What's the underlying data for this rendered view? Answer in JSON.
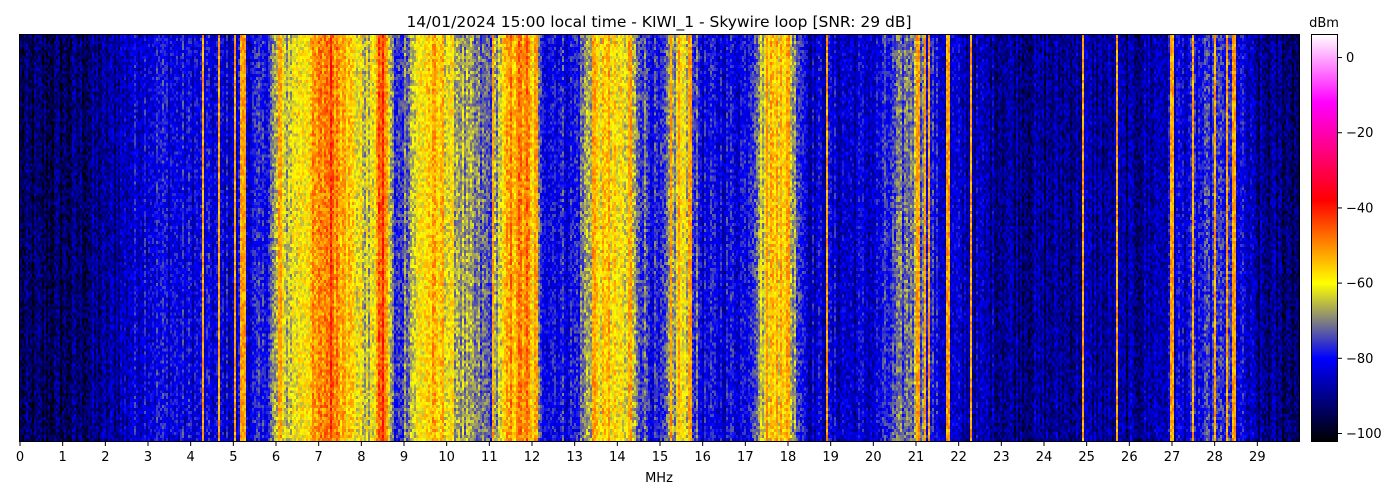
{
  "chart_data": {
    "type": "heatmap",
    "title": "14/01/2024 15:00 local time - KIWI_1 - Skywire loop [SNR: 29 dB]",
    "xlabel": "MHz",
    "ylabel": "",
    "xlim": [
      0,
      30
    ],
    "x_ticks": [
      "0",
      "1",
      "2",
      "3",
      "4",
      "5",
      "6",
      "7",
      "8",
      "9",
      "10",
      "11",
      "12",
      "13",
      "14",
      "15",
      "16",
      "17",
      "18",
      "19",
      "20",
      "21",
      "22",
      "23",
      "24",
      "25",
      "26",
      "27",
      "28",
      "29"
    ],
    "colorbar": {
      "label": "dBm",
      "range": [
        -102,
        6
      ],
      "ticks": [
        "0",
        "−20",
        "−40",
        "−60",
        "−80",
        "−100"
      ],
      "tick_values": [
        0,
        -20,
        -40,
        -60,
        -80,
        -100
      ],
      "colors": [
        "#000000",
        "#0000ff",
        "#ffff00",
        "#ff0000",
        "#ff00ff",
        "#ffffff"
      ],
      "color_stops_dbm": [
        -102,
        -80,
        -60,
        -38,
        -12,
        6
      ]
    },
    "frequency_profile_dbm": [
      {
        "mhz": 0.0,
        "dbm": -95
      },
      {
        "mhz": 1.0,
        "dbm": -94
      },
      {
        "mhz": 2.0,
        "dbm": -90
      },
      {
        "mhz": 2.5,
        "dbm": -85
      },
      {
        "mhz": 3.0,
        "dbm": -80
      },
      {
        "mhz": 4.0,
        "dbm": -82
      },
      {
        "mhz": 5.0,
        "dbm": -83
      },
      {
        "mhz": 5.7,
        "dbm": -80
      },
      {
        "mhz": 6.0,
        "dbm": -68
      },
      {
        "mhz": 6.5,
        "dbm": -60
      },
      {
        "mhz": 7.0,
        "dbm": -52
      },
      {
        "mhz": 7.3,
        "dbm": -45
      },
      {
        "mhz": 7.7,
        "dbm": -56
      },
      {
        "mhz": 8.2,
        "dbm": -66
      },
      {
        "mhz": 8.5,
        "dbm": -42
      },
      {
        "mhz": 8.8,
        "dbm": -80
      },
      {
        "mhz": 9.2,
        "dbm": -64
      },
      {
        "mhz": 9.6,
        "dbm": -55
      },
      {
        "mhz": 10.0,
        "dbm": -60
      },
      {
        "mhz": 10.5,
        "dbm": -70
      },
      {
        "mhz": 11.0,
        "dbm": -74
      },
      {
        "mhz": 11.5,
        "dbm": -52
      },
      {
        "mhz": 11.9,
        "dbm": -50
      },
      {
        "mhz": 12.2,
        "dbm": -78
      },
      {
        "mhz": 13.0,
        "dbm": -80
      },
      {
        "mhz": 13.5,
        "dbm": -58
      },
      {
        "mhz": 14.0,
        "dbm": -60
      },
      {
        "mhz": 14.4,
        "dbm": -68
      },
      {
        "mhz": 15.0,
        "dbm": -82
      },
      {
        "mhz": 15.5,
        "dbm": -60
      },
      {
        "mhz": 16.0,
        "dbm": -82
      },
      {
        "mhz": 17.0,
        "dbm": -80
      },
      {
        "mhz": 17.6,
        "dbm": -55
      },
      {
        "mhz": 18.0,
        "dbm": -62
      },
      {
        "mhz": 18.5,
        "dbm": -84
      },
      {
        "mhz": 20.0,
        "dbm": -84
      },
      {
        "mhz": 21.0,
        "dbm": -68
      },
      {
        "mhz": 21.5,
        "dbm": -82
      },
      {
        "mhz": 22.0,
        "dbm": -86
      },
      {
        "mhz": 24.0,
        "dbm": -90
      },
      {
        "mhz": 25.0,
        "dbm": -88
      },
      {
        "mhz": 26.0,
        "dbm": -90
      },
      {
        "mhz": 27.0,
        "dbm": -84
      },
      {
        "mhz": 28.0,
        "dbm": -78
      },
      {
        "mhz": 28.5,
        "dbm": -80
      },
      {
        "mhz": 29.0,
        "dbm": -90
      },
      {
        "mhz": 30.0,
        "dbm": -92
      }
    ],
    "strong_carriers_mhz": [
      4.3,
      4.65,
      5.05,
      5.2,
      5.28,
      6.1,
      7.25,
      7.6,
      8.45,
      8.55,
      9.9,
      11.1,
      11.65,
      11.85,
      12.1,
      13.45,
      13.8,
      14.3,
      15.25,
      15.45,
      15.7,
      17.5,
      17.75,
      17.85,
      18.0,
      18.9,
      21.05,
      21.2,
      21.3,
      21.75,
      22.3,
      24.9,
      25.7,
      27.0,
      27.5,
      28.0,
      28.3,
      28.45
    ]
  }
}
